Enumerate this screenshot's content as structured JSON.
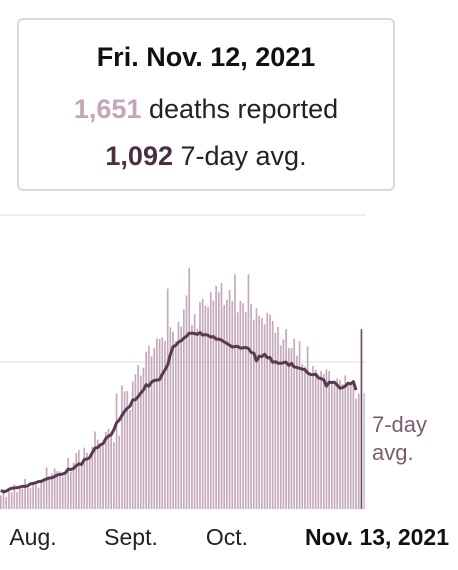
{
  "tooltip": {
    "date": "Fri. Nov. 12, 2021",
    "deaths_value": "1,651",
    "deaths_label": "deaths reported",
    "avg_value": "1,092",
    "avg_label": "7-day avg."
  },
  "colors": {
    "bar": "#c4a9bb",
    "bar_highlight": "#6e4a62",
    "avg_line": "#5a3a50",
    "deaths_number": "#c4a6bc",
    "avg_number": "#4a2f40",
    "grid": "#dddddd"
  },
  "chart_data": {
    "type": "bar",
    "x_tick_labels": [
      "Aug.",
      "Sept.",
      "Oct.",
      "Nov. 13, 2021"
    ],
    "avg_label": [
      "7-day",
      "avg."
    ],
    "grid": true,
    "ylim": [
      0,
      2700
    ],
    "series": [
      {
        "name": "deaths reported",
        "values": [
          125,
          182,
          110,
          195,
          153,
          228,
          155,
          184,
          186,
          278,
          221,
          192,
          239,
          252,
          196,
          264,
          272,
          382,
          273,
          327,
          372,
          348,
          344,
          299,
          346,
          467,
          345,
          428,
          514,
          541,
          419,
          564,
          517,
          480,
          573,
          711,
          637,
          605,
          581,
          706,
          733,
          666,
          612,
          1061,
          672,
          1134,
          1079,
          1084,
          911,
          1169,
          1239,
          1322,
          1226,
          1299,
          1446,
          1498,
          1401,
          1480,
          1567,
          1561,
          1576,
          1542,
          2025,
          1669,
          1629,
          1542,
          1719,
          1676,
          1834,
          1961,
          2216,
          1687,
          1792,
          1656,
          1900,
          1931,
          1865,
          1853,
          1990,
          1914,
          2050,
          1989,
          2075,
          1874,
          1920,
          2013,
          1909,
          2155,
          1806,
          1911,
          1889,
          1812,
          2156,
          1882,
          1739,
          1843,
          1773,
          1752,
          1696,
          1801,
          1784,
          1728,
          1619,
          1674,
          1502,
          1557,
          1652,
          1480,
          1476,
          1564,
          1409,
          1541,
          1331,
          1308,
          1493,
          1254,
          1313,
          1280,
          1225,
          1268,
          1240,
          1282,
          1266,
          1150,
          1177,
          1200,
          1184,
          1147,
          1227,
          1140,
          1135,
          1180,
          1013,
          1058,
          1651,
          1065
        ]
      },
      {
        "name": "7-day avg.",
        "values": [
          171,
          157,
          164,
          180,
          191,
          193,
          196,
          200,
          209,
          207,
          214,
          231,
          235,
          242,
          251,
          254,
          266,
          276,
          285,
          287,
          298,
          313,
          317,
          321,
          332,
          366,
          363,
          372,
          397,
          414,
          409,
          455,
          458,
          473,
          518,
          559,
          564,
          589,
          600,
          647,
          670,
          681,
          728,
          791,
          817,
          859,
          898,
          925,
          945,
          1001,
          1004,
          1031,
          1065,
          1093,
          1142,
          1128,
          1165,
          1181,
          1183,
          1189,
          1239,
          1277,
          1323,
          1420,
          1489,
          1503,
          1533,
          1545,
          1569,
          1587,
          1614,
          1614,
          1612,
          1603,
          1620,
          1597,
          1602,
          1595,
          1578,
          1584,
          1559,
          1561,
          1551,
          1534,
          1521,
          1505,
          1488,
          1492,
          1494,
          1477,
          1480,
          1484,
          1474,
          1439,
          1432,
          1360,
          1404,
          1400,
          1421,
          1388,
          1392,
          1348,
          1353,
          1339,
          1338,
          1344,
          1349,
          1319,
          1337,
          1304,
          1300,
          1292,
          1285,
          1279,
          1250,
          1235,
          1233,
          1238,
          1205,
          1198,
          1185,
          1128,
          1164,
          1162,
          1164,
          1138,
          1110,
          1115,
          1129,
          1155,
          1149,
          1170,
          1092
        ]
      }
    ]
  }
}
